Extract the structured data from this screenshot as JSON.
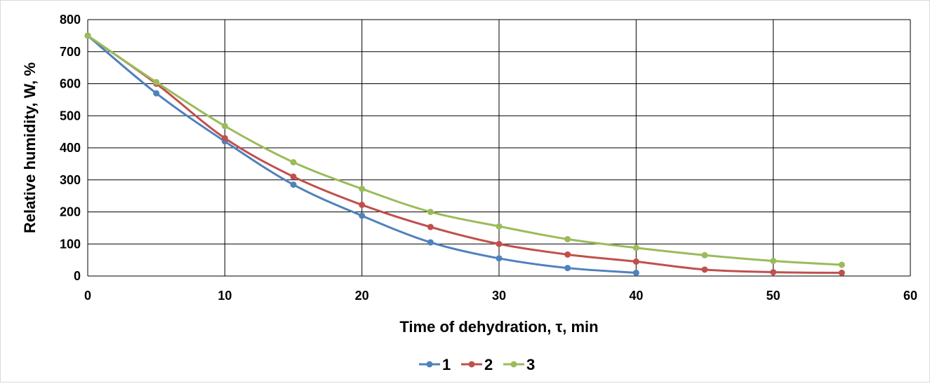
{
  "chart_data": {
    "type": "line",
    "xlabel": "Time of dehydration, τ, min",
    "ylabel": "Relative humidity, W, %",
    "xlim": [
      0,
      60
    ],
    "ylim": [
      0,
      800
    ],
    "xticks": [
      0,
      10,
      20,
      30,
      40,
      50,
      60
    ],
    "yticks": [
      0,
      100,
      200,
      300,
      400,
      500,
      600,
      700,
      800
    ],
    "grid": true,
    "legend_position": "bottom",
    "series": [
      {
        "name": "1",
        "color": "#4F81BD",
        "x": [
          0,
          5,
          10,
          15,
          20,
          25,
          30,
          35,
          40
        ],
        "y": [
          750,
          570,
          420,
          285,
          188,
          105,
          55,
          25,
          10
        ]
      },
      {
        "name": "2",
        "color": "#C0504D",
        "x": [
          0,
          5,
          10,
          15,
          20,
          25,
          30,
          35,
          40,
          45,
          50,
          55
        ],
        "y": [
          750,
          600,
          430,
          310,
          222,
          153,
          100,
          67,
          45,
          20,
          12,
          10
        ]
      },
      {
        "name": "3",
        "color": "#9BBB59",
        "x": [
          0,
          5,
          10,
          15,
          20,
          25,
          30,
          35,
          40,
          45,
          50,
          55
        ],
        "y": [
          750,
          605,
          468,
          355,
          272,
          200,
          155,
          115,
          88,
          65,
          47,
          35
        ]
      }
    ]
  }
}
